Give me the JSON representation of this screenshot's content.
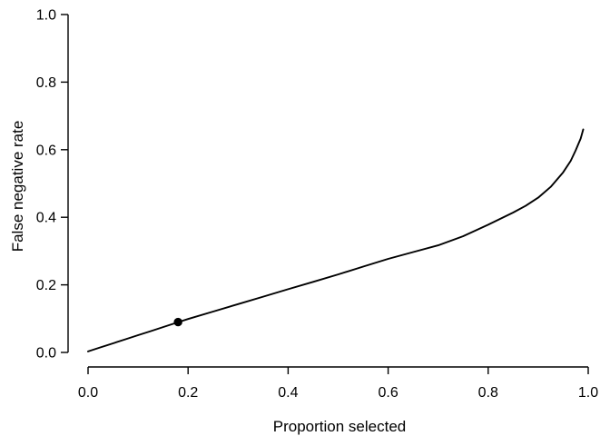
{
  "window": {
    "background": "#ffffff",
    "foreground": "#000000"
  },
  "chart_data": {
    "type": "line",
    "title": "",
    "xlabel": "Proportion selected",
    "ylabel": "False negative rate",
    "xlim": [
      0.0,
      1.0
    ],
    "ylim": [
      0.0,
      1.0
    ],
    "grid": false,
    "legend": null,
    "x_ticks": {
      "values": [
        0.0,
        0.2,
        0.4,
        0.6,
        0.8,
        1.0
      ],
      "labels": [
        "0.0",
        "0.2",
        "0.4",
        "0.6",
        "0.8",
        "1.0"
      ]
    },
    "y_ticks": {
      "values": [
        0.0,
        0.2,
        0.4,
        0.6,
        0.8,
        1.0
      ],
      "labels": [
        "0.0",
        "0.2",
        "0.4",
        "0.6",
        "0.8",
        "1.0"
      ]
    },
    "series": [
      {
        "name": "false-negative-rate-curve",
        "color": "#000000",
        "line_width": 1.9,
        "x": [
          0.0,
          0.025,
          0.05,
          0.075,
          0.1,
          0.125,
          0.15,
          0.175,
          0.2,
          0.25,
          0.3,
          0.35,
          0.4,
          0.45,
          0.5,
          0.55,
          0.6,
          0.65,
          0.7,
          0.75,
          0.8,
          0.85,
          0.875,
          0.9,
          0.925,
          0.95,
          0.965,
          0.975,
          0.985,
          0.99
        ],
        "y": [
          0.003,
          0.015,
          0.027,
          0.039,
          0.051,
          0.063,
          0.075,
          0.087,
          0.099,
          0.121,
          0.143,
          0.165,
          0.187,
          0.209,
          0.231,
          0.254,
          0.277,
          0.297,
          0.317,
          0.344,
          0.378,
          0.414,
          0.434,
          0.458,
          0.49,
          0.533,
          0.567,
          0.598,
          0.633,
          0.66
        ]
      }
    ],
    "markers": [
      {
        "name": "selected-operating-point",
        "x": 0.18,
        "y": 0.09,
        "shape": "filled-circle",
        "color": "#000000",
        "radius": 4.7
      }
    ]
  }
}
